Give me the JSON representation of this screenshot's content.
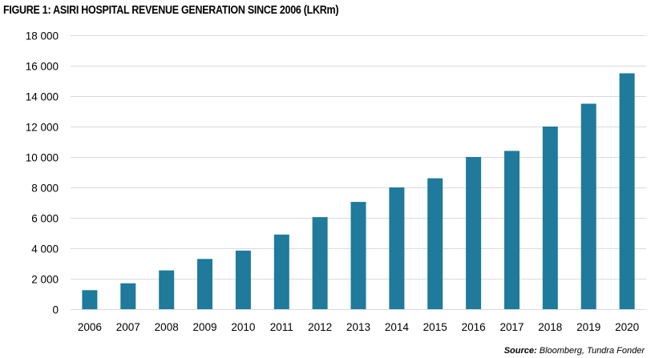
{
  "chart_data": {
    "type": "bar",
    "title": "FIGURE 1: ASIRI HOSPITAL REVENUE GENERATION SINCE 2006 (LKRm)",
    "xlabel": "",
    "ylabel": "",
    "categories": [
      "2006",
      "2007",
      "2008",
      "2009",
      "2010",
      "2011",
      "2012",
      "2013",
      "2014",
      "2015",
      "2016",
      "2017",
      "2018",
      "2019",
      "2020"
    ],
    "values": [
      1250,
      1700,
      2550,
      3300,
      3850,
      4900,
      6050,
      7050,
      8000,
      8600,
      10000,
      10400,
      12000,
      13500,
      15500
    ],
    "ylim": [
      0,
      18000
    ],
    "yticks": [
      0,
      2000,
      4000,
      6000,
      8000,
      10000,
      12000,
      14000,
      16000,
      18000
    ],
    "ytick_labels": [
      "0",
      "2 000",
      "4 000",
      "6 000",
      "8 000",
      "10 000",
      "12 000",
      "14 000",
      "16 000",
      "18 000"
    ],
    "grid": true,
    "legend": "none",
    "bar_color": "#1f7a9c"
  },
  "source": {
    "label": "Source:",
    "text": "Bloomberg, Tundra Fonder"
  }
}
